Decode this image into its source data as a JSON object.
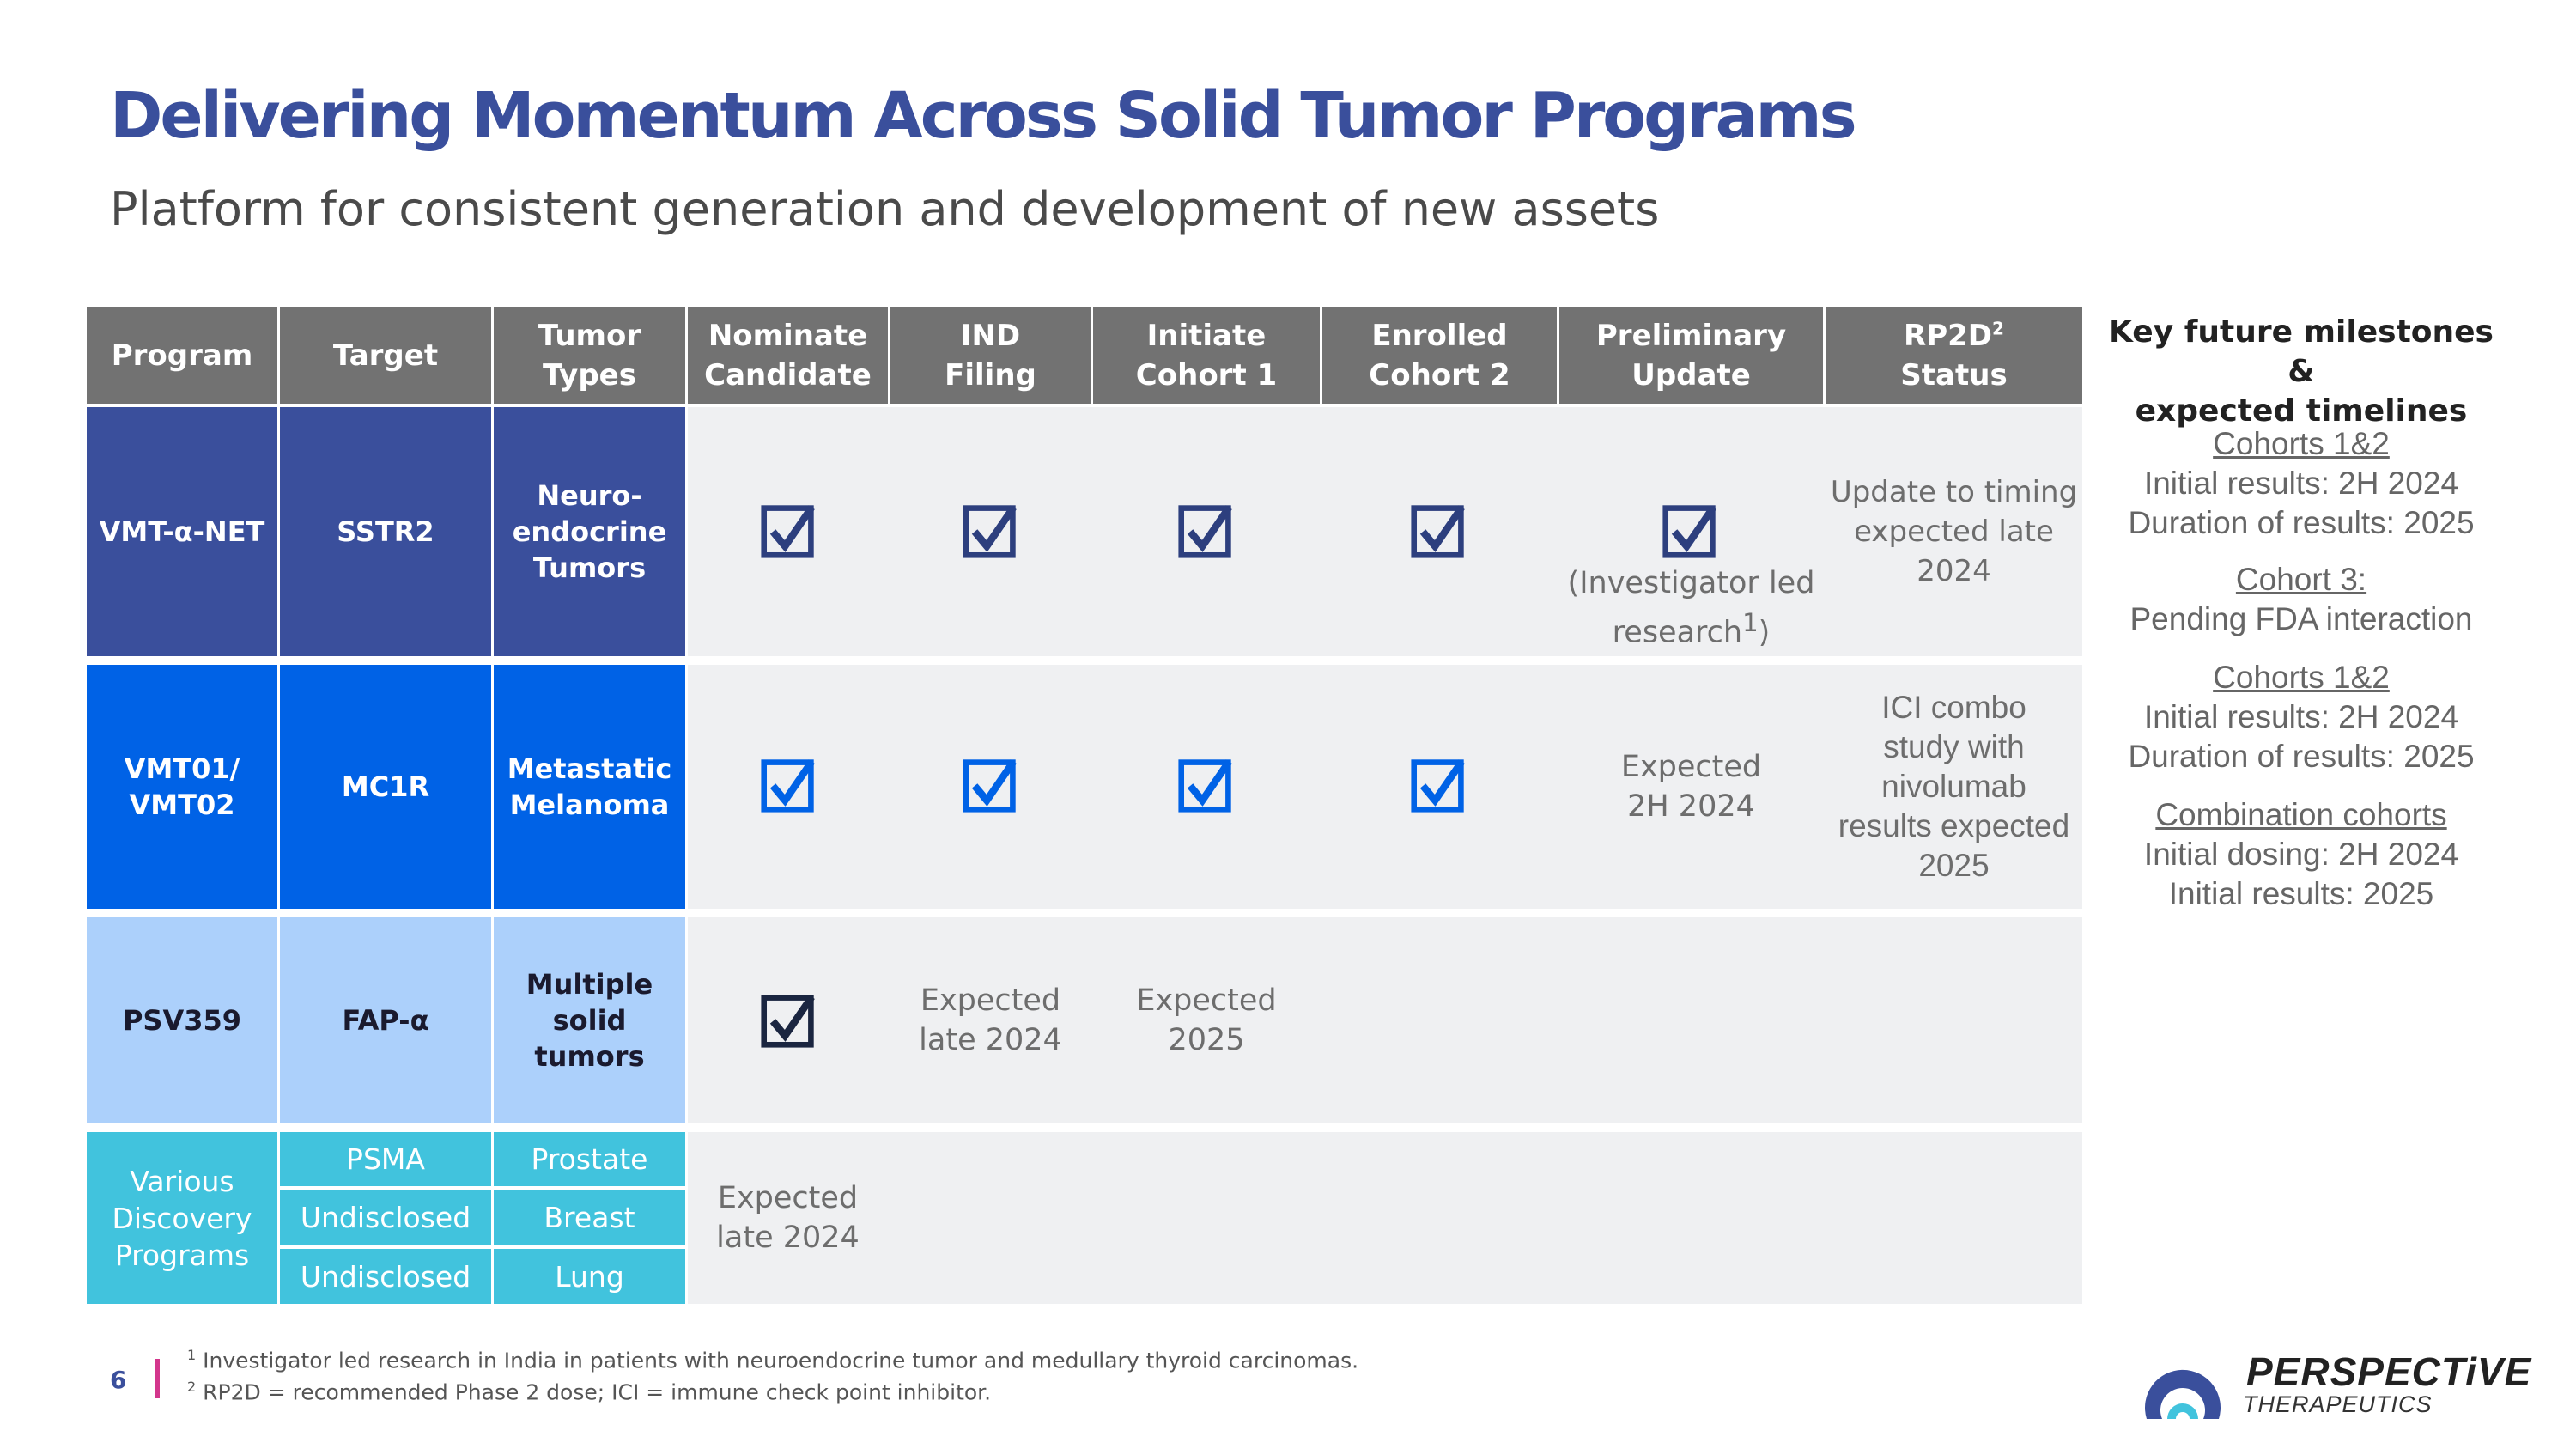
{
  "title": "Delivering Momentum Across Solid Tumor Programs",
  "subtitle": "Platform for consistent generation and development of new assets",
  "colors": {
    "title_blue": "#3a4f9c",
    "header_gray": "#727272",
    "row1": "#3a4f9c",
    "row2": "#0062e6",
    "row3": "#acd0fb",
    "row4": "#41c3dd",
    "band": "#eff0f2"
  },
  "table": {
    "headers": {
      "program": "Program",
      "target": "Target",
      "tumor_types": "Tumor\nTypes",
      "nominate": "Nominate\nCandidate",
      "ind": "IND\nFiling",
      "initiate": "Initiate\nCohort 1",
      "enrolled": "Enrolled\nCohort 2",
      "preliminary": "Preliminary\nUpdate",
      "rp2d": "RP2D",
      "rp2d_sup": "2",
      "rp2d_status": "Status"
    },
    "rows": [
      {
        "program": "VMT-α-NET",
        "target": "SSTR2",
        "tumor": "Neuro-\nendocrine\nTumors",
        "checks": [
          "nominate",
          "ind",
          "initiate",
          "enrolled",
          "preliminary"
        ],
        "preliminary_note": "(Investigator led\nresearch",
        "preliminary_note_sup": "1",
        "preliminary_note_end": ")",
        "status": "Update to timing\nexpected late 2024"
      },
      {
        "program": "VMT01/\nVMT02",
        "target": "MC1R",
        "tumor": "Metastatic\nMelanoma",
        "checks": [
          "nominate",
          "ind",
          "initiate",
          "enrolled"
        ],
        "preliminary": "Expected\n2H 2024",
        "status": "ICI combo\nstudy with\nnivolumab\nresults expected\n2025"
      },
      {
        "program": "PSV359",
        "target": "FAP-α",
        "tumor": "Multiple\nsolid tumors",
        "checks": [
          "nominate"
        ],
        "ind": "Expected\nlate 2024",
        "initiate": "Expected\n2025"
      },
      {
        "program": "Various\nDiscovery\nPrograms",
        "sub_rows": [
          {
            "target": "PSMA",
            "tumor": "Prostate"
          },
          {
            "target": "Undisclosed",
            "tumor": "Breast"
          },
          {
            "target": "Undisclosed",
            "tumor": "Lung"
          }
        ],
        "nominate": "Expected\nlate 2024"
      }
    ]
  },
  "milestones": {
    "title": "Key future milestones &\nexpected timelines",
    "groups": [
      {
        "heading": "Cohorts 1&2",
        "lines": [
          "Initial results: 2H 2024",
          "Duration of results: 2025"
        ]
      },
      {
        "heading": "Cohort 3:",
        "lines": [
          "Pending FDA interaction"
        ]
      },
      {
        "heading": "Cohorts 1&2",
        "lines": [
          "Initial results: 2H 2024",
          "Duration of results: 2025"
        ]
      },
      {
        "heading": "Combination cohorts",
        "lines": [
          "Initial dosing: 2H 2024",
          "Initial results: 2025"
        ]
      }
    ]
  },
  "footnotes": [
    {
      "sup": "1",
      "text": "Investigator led research in India in patients with neuroendocrine tumor and medullary thyroid carcinomas."
    },
    {
      "sup": "2",
      "text": "RP2D = recommended Phase 2 dose; ICI = immune check point inhibitor."
    }
  ],
  "page_number": "6",
  "logo": {
    "name": "PERSPECTiVE",
    "sub": "THERAPEUTICS"
  }
}
